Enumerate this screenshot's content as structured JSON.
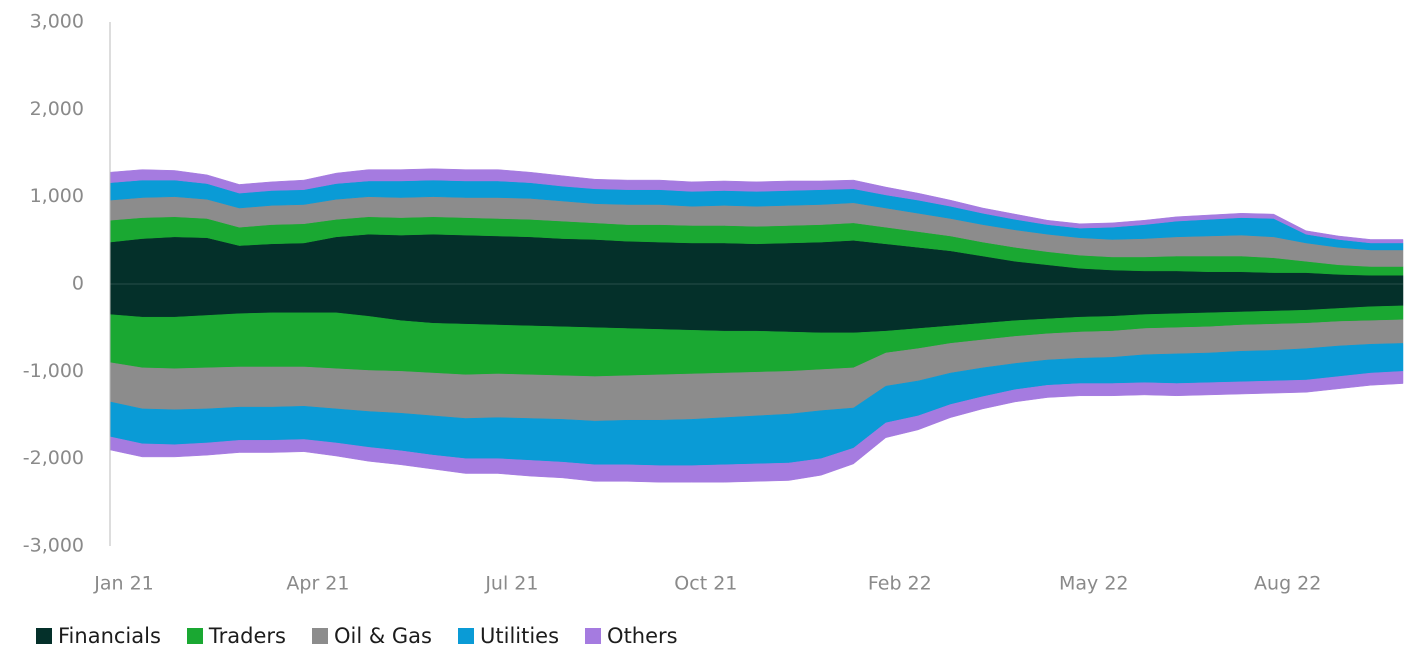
{
  "chart_data": {
    "type": "diverging-stacked-area",
    "categories": [
      "Jan 21",
      null,
      null,
      null,
      null,
      null,
      "Apr 21",
      null,
      null,
      null,
      null,
      null,
      "Jul 21",
      null,
      null,
      null,
      null,
      null,
      "Oct 21",
      null,
      null,
      null,
      null,
      null,
      "Feb 22",
      null,
      null,
      null,
      null,
      null,
      "May 22",
      null,
      null,
      null,
      null,
      null,
      "Aug 22",
      null,
      null,
      null,
      null
    ],
    "ylim": [
      -3000,
      3000
    ],
    "yticks": [
      {
        "value": -3000,
        "label": "-3,000"
      },
      {
        "value": -2000,
        "label": "-2,000"
      },
      {
        "value": -1000,
        "label": "-1,000"
      },
      0,
      {
        "value": 1000,
        "label": "1,000"
      },
      {
        "value": 2000,
        "label": "2,000"
      },
      {
        "value": 3000,
        "label": "3,000"
      }
    ],
    "series": [
      {
        "name": "Financials",
        "color": "#04302a",
        "long": [
          480,
          520,
          540,
          530,
          440,
          460,
          470,
          540,
          570,
          560,
          570,
          560,
          550,
          540,
          520,
          510,
          490,
          480,
          470,
          470,
          460,
          470,
          480,
          500,
          460,
          420,
          380,
          320,
          260,
          220,
          180,
          160,
          150,
          150,
          140,
          140,
          130,
          130,
          110,
          100,
          100
        ],
        "short": [
          -350,
          -380,
          -380,
          -360,
          -340,
          -330,
          -330,
          -330,
          -370,
          -420,
          -450,
          -460,
          -470,
          -480,
          -490,
          -500,
          -510,
          -520,
          -530,
          -540,
          -540,
          -550,
          -560,
          -560,
          -540,
          -510,
          -480,
          -450,
          -420,
          -400,
          -380,
          -370,
          -350,
          -340,
          -330,
          -320,
          -310,
          -300,
          -280,
          -260,
          -250
        ]
      },
      {
        "name": "Traders",
        "color": "#1aa832",
        "long": [
          250,
          240,
          230,
          220,
          210,
          220,
          220,
          200,
          200,
          200,
          200,
          200,
          200,
          200,
          200,
          190,
          190,
          200,
          200,
          200,
          200,
          200,
          200,
          200,
          190,
          180,
          170,
          160,
          160,
          150,
          150,
          150,
          160,
          170,
          180,
          180,
          170,
          130,
          110,
          100,
          100
        ],
        "short": [
          -550,
          -580,
          -590,
          -600,
          -610,
          -620,
          -620,
          -640,
          -620,
          -580,
          -570,
          -580,
          -560,
          -560,
          -560,
          -560,
          -540,
          -520,
          -500,
          -480,
          -470,
          -450,
          -420,
          -400,
          -250,
          -230,
          -200,
          -190,
          -180,
          -170,
          -170,
          -170,
          -160,
          -160,
          -160,
          -150,
          -150,
          -150,
          -150,
          -160,
          -160
        ]
      },
      {
        "name": "Oil & Gas",
        "color": "#8c8c8c",
        "long": [
          230,
          230,
          230,
          220,
          220,
          220,
          220,
          230,
          230,
          230,
          230,
          230,
          240,
          240,
          230,
          220,
          230,
          230,
          220,
          230,
          230,
          230,
          230,
          230,
          220,
          210,
          200,
          200,
          200,
          200,
          200,
          200,
          210,
          220,
          230,
          240,
          240,
          210,
          200,
          190,
          190
        ],
        "short": [
          -450,
          -470,
          -470,
          -470,
          -460,
          -460,
          -450,
          -460,
          -470,
          -480,
          -490,
          -500,
          -500,
          -500,
          -500,
          -510,
          -510,
          -520,
          -520,
          -510,
          -500,
          -490,
          -470,
          -460,
          -380,
          -370,
          -340,
          -320,
          -310,
          -300,
          -300,
          -300,
          -300,
          -300,
          -300,
          -300,
          -300,
          -290,
          -280,
          -270,
          -270
        ]
      },
      {
        "name": "Utilities",
        "color": "#0a9bd6",
        "long": [
          200,
          200,
          190,
          180,
          170,
          170,
          170,
          180,
          180,
          190,
          190,
          190,
          190,
          180,
          170,
          170,
          170,
          170,
          170,
          170,
          170,
          170,
          170,
          160,
          150,
          150,
          140,
          130,
          120,
          110,
          110,
          140,
          160,
          180,
          190,
          200,
          210,
          100,
          90,
          80,
          80
        ],
        "short": [
          -400,
          -400,
          -400,
          -390,
          -380,
          -380,
          -380,
          -390,
          -410,
          -430,
          -450,
          -460,
          -470,
          -480,
          -490,
          -500,
          -510,
          -520,
          -530,
          -540,
          -550,
          -560,
          -550,
          -460,
          -420,
          -400,
          -360,
          -330,
          -300,
          -290,
          -290,
          -300,
          -320,
          -340,
          -340,
          -350,
          -350,
          -360,
          -350,
          -330,
          -320
        ]
      },
      {
        "name": "Others",
        "color": "#a57be0",
        "long": [
          120,
          120,
          110,
          100,
          100,
          100,
          110,
          120,
          130,
          130,
          130,
          130,
          130,
          120,
          120,
          110,
          110,
          110,
          110,
          110,
          110,
          110,
          100,
          100,
          90,
          80,
          70,
          60,
          60,
          50,
          50,
          50,
          50,
          50,
          50,
          50,
          50,
          40,
          40,
          40,
          40
        ],
        "short": [
          -150,
          -150,
          -140,
          -140,
          -140,
          -140,
          -140,
          -150,
          -160,
          -160,
          -160,
          -170,
          -170,
          -180,
          -180,
          -190,
          -190,
          -190,
          -190,
          -200,
          -200,
          -200,
          -190,
          -180,
          -170,
          -160,
          -150,
          -140,
          -140,
          -140,
          -140,
          -140,
          -140,
          -140,
          -140,
          -140,
          -140,
          -140,
          -140,
          -140,
          -140
        ]
      }
    ]
  }
}
